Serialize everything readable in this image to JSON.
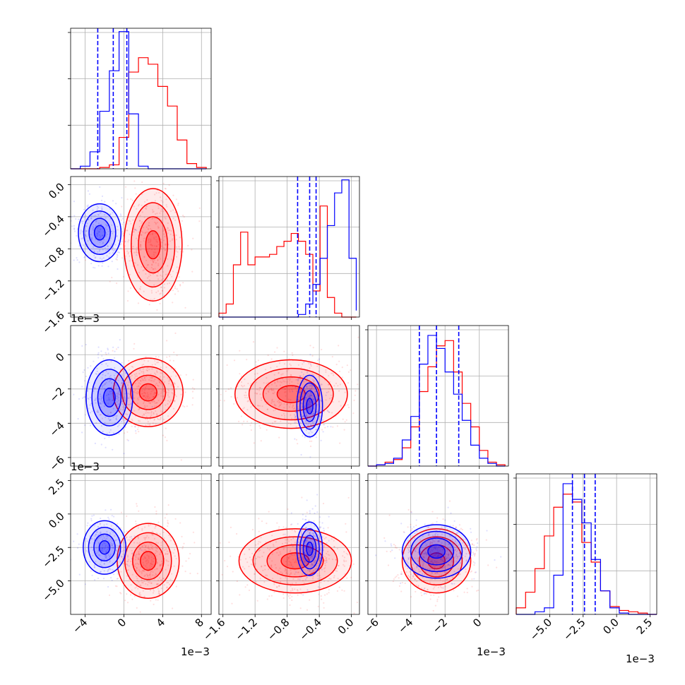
{
  "colors": {
    "series_1": "#0000ff",
    "series_2": "#ff0000",
    "grid": "#b0b0b0",
    "frame": "#000000"
  },
  "chart_data": {
    "type": "corner",
    "grid": true,
    "n_params": 4,
    "series": [
      {
        "color": "#0000ff",
        "quantiles_shown_as": "dashed vertical lines"
      },
      {
        "color": "#ff0000"
      }
    ],
    "axes_ranges": [
      [
        -0.0055,
        0.009
      ],
      [
        -0.00165,
        0.0001
      ],
      [
        -0.0065,
        0.0017
      ],
      [
        -0.0075,
        0.003
      ]
    ],
    "offset_text": "1e−3",
    "tick_labels": {
      "p1": [
        "−4",
        "0",
        "4",
        "8"
      ],
      "p2": [
        "−1.6",
        "−1.2",
        "−0.8",
        "−0.4",
        "0.0"
      ],
      "p3": [
        "−6",
        "−4",
        "−2",
        "0"
      ],
      "p4": [
        "−5.0",
        "−2.5",
        "0.0",
        "2.5"
      ]
    },
    "marginals": [
      {
        "param": 1,
        "bins_edges": [
          -0.0055,
          -0.0045,
          -0.0035,
          -0.0025,
          -0.0015,
          -0.0005,
          0.0005,
          0.0015,
          0.0025,
          0.0035,
          0.0045,
          0.0055,
          0.0065,
          0.0075,
          0.0085
        ],
        "blue_counts": [
          0.0,
          0.02,
          0.13,
          0.44,
          0.75,
          1.05,
          0.42,
          0.02,
          0,
          0,
          0,
          0,
          0,
          0
        ],
        "red_counts": [
          0,
          0,
          0,
          0.01,
          0.03,
          0.24,
          0.74,
          0.85,
          0.8,
          0.63,
          0.48,
          0.22,
          0.04,
          0.01
        ],
        "blue_quantiles": [
          -0.0027,
          -0.0011,
          0.0003
        ]
      },
      {
        "param": 2,
        "bins_edges": [
          -0.00165,
          -0.00156,
          -0.00147,
          -0.00138,
          -0.00129,
          -0.0012,
          -0.00111,
          -0.00102,
          -0.00093,
          -0.00084,
          -0.00075,
          -0.00066,
          -0.00057,
          -0.00048,
          -0.00039,
          -0.0003,
          -0.00021,
          -0.00012,
          -3e-05,
          6e-05
        ],
        "blue_counts": [
          0,
          0,
          0,
          0,
          0,
          0,
          0,
          0,
          0,
          0,
          0,
          0.02,
          0.1,
          0.25,
          0.45,
          0.7,
          0.95,
          1.05,
          0.45,
          0.05
        ],
        "red_counts": [
          0.03,
          0.1,
          0.4,
          0.65,
          0.4,
          0.46,
          0.46,
          0.48,
          0.54,
          0.58,
          0.64,
          0.58,
          0.48,
          0.2,
          0.85,
          0.15,
          0.03,
          0,
          0,
          0
        ],
        "blue_quantiles": [
          -0.00067,
          -0.00052,
          -0.00044
        ]
      },
      {
        "param": 3,
        "bins_edges": [
          -0.0065,
          -0.006,
          -0.0055,
          -0.005,
          -0.0045,
          -0.004,
          -0.0035,
          -0.003,
          -0.0025,
          -0.002,
          -0.0015,
          -0.001,
          -0.0005,
          0.0,
          0.0005,
          0.001,
          0.0015
        ],
        "blue_counts": [
          0,
          0.01,
          0.02,
          0.06,
          0.2,
          0.38,
          0.78,
          1.0,
          0.9,
          0.72,
          0.55,
          0.35,
          0.16,
          0.06,
          0.02,
          0
        ],
        "red_counts": [
          0,
          0.01,
          0.03,
          0.05,
          0.14,
          0.3,
          0.57,
          0.76,
          0.92,
          0.96,
          0.72,
          0.48,
          0.3,
          0.12,
          0.03,
          0.01
        ],
        "blue_quantiles": [
          -0.0035,
          -0.0025,
          -0.0012
        ]
      },
      {
        "param": 4,
        "bins_edges": [
          -0.0075,
          -0.0068,
          -0.0061,
          -0.0054,
          -0.0047,
          -0.004,
          -0.0033,
          -0.0026,
          -0.0019,
          -0.0012,
          -0.0005,
          0.0002,
          0.0009,
          0.0016,
          0.0023,
          0.003
        ],
        "blue_counts": [
          0,
          0,
          0.02,
          0.05,
          0.3,
          1.0,
          0.88,
          0.7,
          0.42,
          0.18,
          0.05,
          0.01,
          0,
          0,
          0
        ],
        "red_counts": [
          0.05,
          0.17,
          0.35,
          0.6,
          0.82,
          0.92,
          0.86,
          0.55,
          0.4,
          0.18,
          0.06,
          0.03,
          0.02,
          0.01,
          0
        ],
        "blue_quantiles": [
          -0.0033,
          -0.0024,
          -0.0016
        ]
      }
    ],
    "scatter_panels": [
      {
        "x_param": 1,
        "y_param": 2,
        "blue": {
          "mean": [
            -0.0025,
            -0.0006
          ],
          "sd": [
            0.0011,
            0.00018
          ]
        },
        "red": {
          "mean": [
            0.003,
            -0.00075
          ],
          "sd": [
            0.0015,
            0.00035
          ]
        }
      },
      {
        "x_param": 1,
        "y_param": 3,
        "blue": {
          "mean": [
            -0.0015,
            -0.0025
          ],
          "sd": [
            0.0012,
            0.0011
          ]
        },
        "red": {
          "mean": [
            0.0025,
            -0.0022
          ],
          "sd": [
            0.0018,
            0.001
          ]
        }
      },
      {
        "x_param": 2,
        "y_param": 3,
        "blue": {
          "mean": [
            -0.00052,
            -0.003
          ],
          "sd": [
            8e-05,
            0.0009
          ]
        },
        "red": {
          "mean": [
            -0.00075,
            -0.0023
          ],
          "sd": [
            0.00035,
            0.001
          ]
        }
      },
      {
        "x_param": 1,
        "y_param": 4,
        "blue": {
          "mean": [
            -0.002,
            -0.0025
          ],
          "sd": [
            0.0011,
            0.001
          ]
        },
        "red": {
          "mean": [
            0.0025,
            -0.0035
          ],
          "sd": [
            0.0016,
            0.0014
          ]
        }
      },
      {
        "x_param": 2,
        "y_param": 4,
        "blue": {
          "mean": [
            -0.00052,
            -0.0026
          ],
          "sd": [
            8e-05,
            0.001
          ]
        },
        "red": {
          "mean": [
            -0.0007,
            -0.0035
          ],
          "sd": [
            0.00035,
            0.0012
          ]
        }
      },
      {
        "x_param": 3,
        "y_param": 4,
        "blue": {
          "mean": [
            -0.0025,
            -0.0028
          ],
          "sd": [
            0.001,
            0.001
          ]
        },
        "red": {
          "mean": [
            -0.0025,
            -0.0035
          ],
          "sd": [
            0.001,
            0.0012
          ]
        }
      }
    ]
  }
}
